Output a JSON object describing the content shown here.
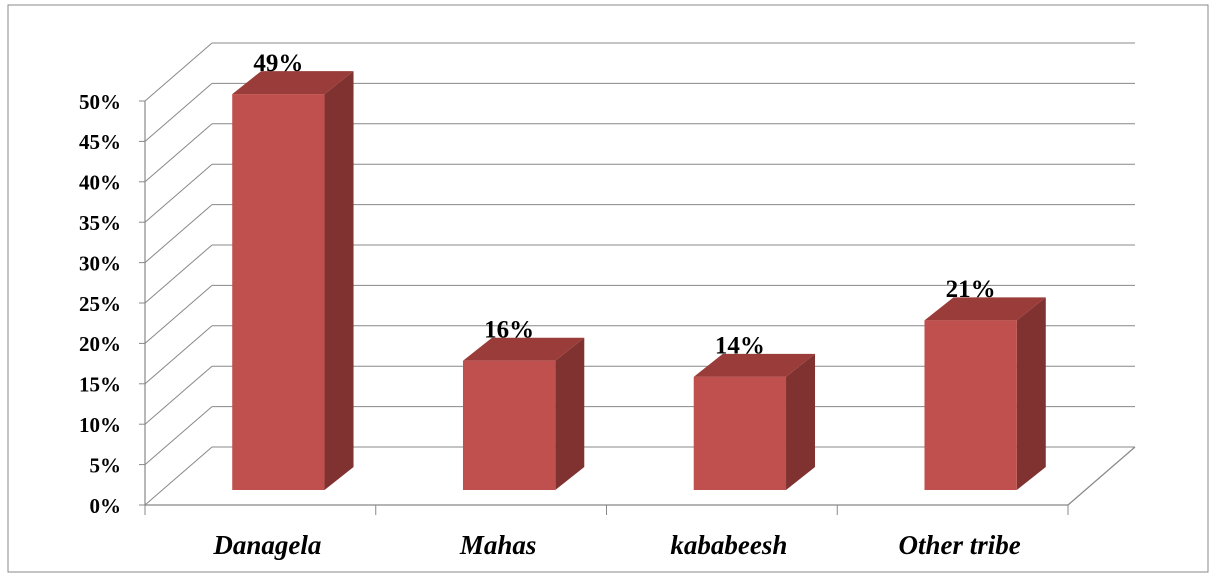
{
  "chart_data": {
    "type": "bar3d",
    "categories": [
      "Danagela",
      "Mahas",
      "kababeesh",
      "Other tribe"
    ],
    "values": [
      49,
      16,
      14,
      21
    ],
    "value_labels": [
      "49%",
      "16%",
      "14%",
      "21%"
    ],
    "color": "#c0504d",
    "ylim": [
      0,
      50
    ],
    "yticks": [
      {
        "value": 0,
        "label": "0%"
      },
      {
        "value": 5,
        "label": "5%"
      },
      {
        "value": 10,
        "label": "10%"
      },
      {
        "value": 15,
        "label": "15%"
      },
      {
        "value": 20,
        "label": "20%"
      },
      {
        "value": 25,
        "label": "25%"
      },
      {
        "value": 30,
        "label": "30%"
      },
      {
        "value": 35,
        "label": "35%"
      },
      {
        "value": 40,
        "label": "40%"
      },
      {
        "value": 45,
        "label": "45%"
      },
      {
        "value": 50,
        "label": "50%"
      }
    ],
    "grid": true
  }
}
